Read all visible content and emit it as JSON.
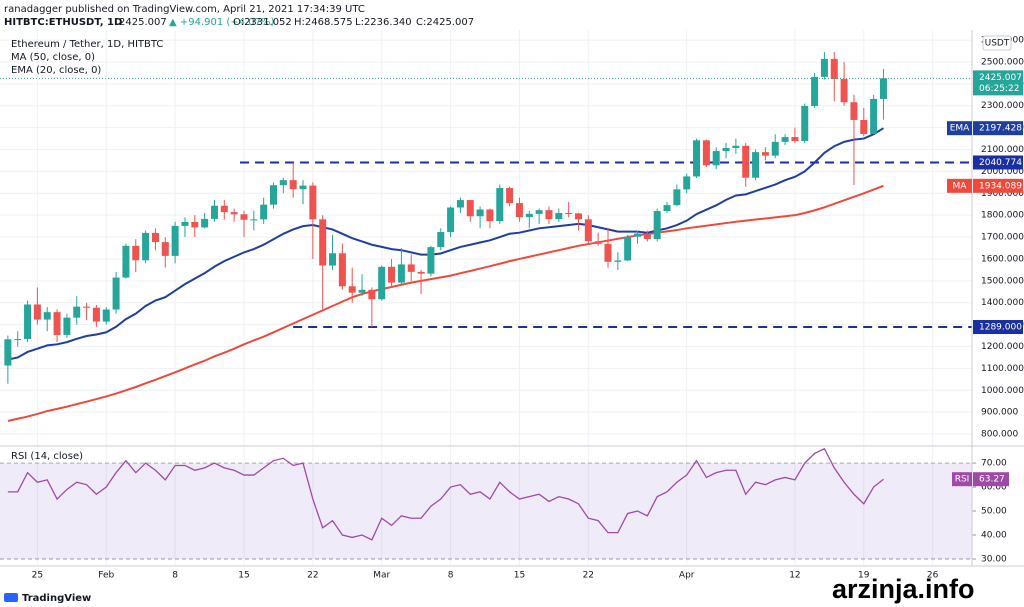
{
  "header": {
    "published": "ranadagger published on TradingView.com, April 21, 2021 17:34:39 UTC",
    "symbol": "HITBTC:ETHUSDT, 1D",
    "last": "2425.007",
    "change": "▲ +94.901 (+4.07%)",
    "stats": [
      "O:2331.052",
      "H:2468.575",
      "L:2236.340",
      "C:2425.007"
    ]
  },
  "footer": {
    "brand": "TradingView",
    "watermark": "arzinja.info"
  },
  "chart_data": [
    {
      "type": "candlestick",
      "title": "Ethereum / Tether, 1D, HITBTC",
      "unit": "USDT",
      "countdown": "06:25:22",
      "up_color": "#26a69a",
      "down_color": "#ef5350",
      "grid": true,
      "x": [
        22,
        23,
        24,
        25,
        26,
        27,
        28,
        29,
        30,
        31,
        32,
        33,
        34,
        35,
        36,
        37,
        38,
        39,
        40,
        41,
        42,
        43,
        44,
        45,
        46,
        47,
        48,
        49,
        50,
        51,
        52,
        53,
        54,
        55,
        56,
        57,
        58,
        59,
        60,
        61,
        62,
        63,
        64,
        65,
        66,
        67,
        68,
        69,
        70,
        71,
        72,
        73,
        74,
        75,
        76,
        77,
        78,
        79,
        80,
        81,
        82,
        83,
        84,
        85,
        86,
        87,
        88,
        89,
        90,
        91,
        92,
        93,
        94,
        95,
        96,
        97,
        98,
        99,
        100,
        101,
        102,
        103,
        104,
        105,
        106,
        107,
        108,
        109,
        110,
        111
      ],
      "open": [
        1113,
        1233,
        1234,
        1392,
        1323,
        1357,
        1253,
        1332,
        1382,
        1377,
        1314,
        1369,
        1515,
        1660,
        1594,
        1719,
        1677,
        1614,
        1751,
        1769,
        1744,
        1783,
        1843,
        1814,
        1804,
        1779,
        1781,
        1848,
        1937,
        1960,
        1919,
        1935,
        1781,
        1570,
        1626,
        1475,
        1446,
        1459,
        1416,
        1564,
        1492,
        1575,
        1541,
        1533,
        1654,
        1723,
        1835,
        1869,
        1795,
        1826,
        1773,
        1924,
        1855,
        1791,
        1806,
        1823,
        1782,
        1810,
        1808,
        1781,
        1681,
        1669,
        1587,
        1593,
        1702,
        1716,
        1691,
        1819,
        1846,
        1918,
        1977,
        2142,
        2028,
        2093,
        2107,
        2117,
        1971,
        2088,
        2072,
        2135,
        2157,
        2139,
        2299,
        2432,
        2514,
        2422,
        2316,
        2235,
        2171,
        2331.052
      ],
      "high": [
        1250,
        1270,
        1410,
        1470,
        1380,
        1370,
        1350,
        1430,
        1400,
        1390,
        1380,
        1540,
        1670,
        1690,
        1730,
        1740,
        1700,
        1770,
        1790,
        1800,
        1810,
        1870,
        1870,
        1830,
        1820,
        1820,
        1880,
        1950,
        1970,
        2040,
        1960,
        1950,
        1800,
        1710,
        1670,
        1560,
        1530,
        1470,
        1570,
        1600,
        1650,
        1620,
        1550,
        1660,
        1740,
        1840,
        1880,
        1870,
        1840,
        1830,
        1940,
        1930,
        1880,
        1820,
        1830,
        1840,
        1830,
        1860,
        1810,
        1800,
        1720,
        1740,
        1630,
        1710,
        1730,
        1730,
        1830,
        1860,
        1940,
        1990,
        2150,
        2145,
        2110,
        2130,
        2150,
        2130,
        2100,
        2110,
        2170,
        2170,
        2200,
        2310,
        2450,
        2545,
        2545,
        2500,
        2350,
        2290,
        2350,
        2468.575
      ],
      "low": [
        1030,
        1200,
        1220,
        1300,
        1270,
        1220,
        1240,
        1300,
        1320,
        1290,
        1300,
        1350,
        1510,
        1540,
        1580,
        1640,
        1560,
        1580,
        1700,
        1700,
        1740,
        1770,
        1780,
        1770,
        1700,
        1730,
        1760,
        1830,
        1900,
        1880,
        1850,
        1600,
        1360,
        1550,
        1460,
        1400,
        1430,
        1289,
        1410,
        1470,
        1480,
        1500,
        1440,
        1520,
        1640,
        1700,
        1810,
        1770,
        1740,
        1740,
        1760,
        1840,
        1770,
        1740,
        1760,
        1760,
        1770,
        1790,
        1730,
        1670,
        1660,
        1560,
        1550,
        1590,
        1670,
        1680,
        1680,
        1810,
        1840,
        1900,
        1970,
        2020,
        2010,
        2060,
        2080,
        1930,
        1960,
        2050,
        2060,
        2120,
        2130,
        2130,
        2290,
        2420,
        2320,
        2300,
        1938,
        2160,
        2170,
        2236.34
      ],
      "close": [
        1233,
        1234,
        1392,
        1323,
        1357,
        1253,
        1332,
        1382,
        1377,
        1314,
        1369,
        1515,
        1660,
        1594,
        1719,
        1677,
        1614,
        1751,
        1769,
        1744,
        1783,
        1843,
        1814,
        1804,
        1779,
        1781,
        1848,
        1937,
        1960,
        1919,
        1935,
        1781,
        1570,
        1626,
        1475,
        1446,
        1459,
        1416,
        1564,
        1492,
        1575,
        1541,
        1533,
        1654,
        1723,
        1835,
        1869,
        1795,
        1826,
        1773,
        1924,
        1855,
        1791,
        1806,
        1823,
        1782,
        1810,
        1808,
        1781,
        1681,
        1669,
        1587,
        1593,
        1702,
        1716,
        1691,
        1819,
        1846,
        1918,
        1977,
        2142,
        2028,
        2093,
        2107,
        2117,
        1971,
        2088,
        2072,
        2135,
        2157,
        2139,
        2299,
        2432,
        2514,
        2422,
        2316,
        2235,
        2171,
        2331,
        2425.007
      ],
      "series": [
        {
          "name": "MA (50, close, 0)",
          "tag": "MA",
          "color": "#f0493a",
          "values": [
            860,
            870,
            880,
            892,
            905,
            915,
            925,
            937,
            948,
            960,
            972,
            985,
            1000,
            1015,
            1032,
            1048,
            1065,
            1082,
            1100,
            1118,
            1135,
            1155,
            1172,
            1190,
            1210,
            1228,
            1245,
            1265,
            1285,
            1305,
            1325,
            1345,
            1365,
            1385,
            1405,
            1425,
            1440,
            1452,
            1462,
            1472,
            1482,
            1492,
            1500,
            1508,
            1516,
            1524,
            1535,
            1545,
            1556,
            1567,
            1578,
            1590,
            1600,
            1610,
            1620,
            1630,
            1640,
            1650,
            1660,
            1668,
            1676,
            1684,
            1692,
            1700,
            1708,
            1714,
            1720,
            1726,
            1732,
            1740,
            1746,
            1752,
            1758,
            1764,
            1770,
            1775,
            1780,
            1785,
            1790,
            1795,
            1800,
            1810,
            1822,
            1836,
            1852,
            1868,
            1884,
            1900,
            1917,
            1934.089
          ]
        },
        {
          "name": "EMA (20, close, 0)",
          "tag": "EMA",
          "color": "#1f3fa0",
          "values": [
            1140,
            1150,
            1175,
            1190,
            1205,
            1210,
            1220,
            1235,
            1248,
            1255,
            1265,
            1290,
            1325,
            1350,
            1385,
            1410,
            1425,
            1455,
            1485,
            1510,
            1535,
            1565,
            1590,
            1610,
            1630,
            1645,
            1665,
            1690,
            1715,
            1735,
            1750,
            1755,
            1745,
            1735,
            1715,
            1695,
            1680,
            1665,
            1655,
            1645,
            1640,
            1630,
            1620,
            1620,
            1625,
            1640,
            1655,
            1665,
            1675,
            1685,
            1700,
            1715,
            1720,
            1730,
            1740,
            1745,
            1750,
            1755,
            1760,
            1755,
            1745,
            1735,
            1725,
            1725,
            1725,
            1720,
            1730,
            1740,
            1755,
            1775,
            1805,
            1825,
            1845,
            1870,
            1890,
            1895,
            1910,
            1925,
            1940,
            1960,
            1975,
            2000,
            2040,
            2085,
            2115,
            2135,
            2145,
            2150,
            2170,
            2197.428
          ]
        }
      ],
      "levels": [
        {
          "value": 2040.774,
          "from": 45.6,
          "color": "#1a2fa0"
        },
        {
          "value": {
            "value": 1289,
            "label": "1289.000"
          },
          "from": 51,
          "color": "#1a2fa0"
        }
      ],
      "xlim": [
        21.2,
        120
      ],
      "xticks": [
        25,
        {
          "value": 32,
          "label": "Feb"
        },
        {
          "value": 39,
          "label": "8"
        },
        {
          "value": 46,
          "label": "15"
        },
        {
          "value": 53,
          "label": "22"
        },
        {
          "value": 60,
          "label": "Mar"
        },
        {
          "value": 67,
          "label": "8"
        },
        {
          "value": 74,
          "label": "15"
        },
        {
          "value": 81,
          "label": "22"
        },
        {
          "value": 91,
          "label": "Apr"
        },
        {
          "value": 102,
          "label": "12"
        },
        {
          "value": 109,
          "label": "19"
        },
        {
          "value": 116,
          "label": "26"
        }
      ],
      "ylim": [
        750,
        2646
      ],
      "yticks": [
        {
          "value": 800,
          "label": "800.000"
        },
        {
          "value": 900,
          "label": "900.000"
        },
        {
          "value": 1000,
          "label": "1000.000"
        },
        {
          "value": 1100,
          "label": "1100.000"
        },
        {
          "value": 1200,
          "label": "1200.000"
        },
        {
          "value": 1300,
          "label": "1300.000"
        },
        {
          "value": 1400,
          "label": "1400.000"
        },
        {
          "value": 1500,
          "label": "1500.000"
        },
        {
          "value": 1600,
          "label": "1600.000"
        },
        {
          "value": 1700,
          "label": "1700.000"
        },
        {
          "value": 1800,
          "label": "1800.000"
        },
        {
          "value": 1900,
          "label": "1900.000"
        },
        {
          "value": 2000,
          "label": "2000.000"
        },
        {
          "value": 2100,
          "label": "2100.000"
        },
        {
          "value": 2200,
          "label": "2200.000"
        },
        {
          "value": 2300,
          "label": "2300.000"
        },
        {
          "value": 2400,
          "label": "2400.000"
        },
        {
          "value": 2500,
          "label": "2500.000"
        },
        {
          "value": 2600,
          "label": "2600.000"
        }
      ]
    },
    {
      "type": "line",
      "title": "RSI (14, close)",
      "band": [
        30,
        70
      ],
      "band_color": "#7e57c2",
      "series": [
        {
          "name": "RSI",
          "color": "#a04aa8",
          "values": [
            58,
            58,
            66,
            62,
            63,
            55,
            59,
            62,
            61,
            57,
            60,
            66,
            71,
            66,
            70,
            67,
            63,
            69,
            69,
            67,
            68,
            70,
            68,
            67,
            65,
            65,
            68,
            71,
            72,
            69,
            70,
            55,
            43,
            46,
            40,
            39,
            40,
            38,
            47,
            44,
            48,
            47,
            47,
            52,
            55,
            60,
            61,
            57,
            58,
            55,
            62,
            58,
            55,
            56,
            57,
            54,
            56,
            55,
            53,
            47,
            46,
            41,
            41,
            49,
            50,
            48,
            56,
            58,
            62,
            65,
            71,
            64,
            66,
            67,
            67,
            57,
            62,
            61,
            63,
            64,
            63,
            70,
            74,
            76,
            68,
            62,
            57,
            53,
            60,
            63.27
          ]
        }
      ],
      "ylim": [
        27.5,
        76.7
      ],
      "yticks": [
        {
          "value": 30,
          "label": "30.00"
        },
        {
          "value": 40,
          "label": "40.00"
        },
        {
          "value": 50,
          "label": "50.00"
        },
        {
          "value": 60,
          "label": "60.00"
        },
        {
          "value": 70,
          "label": "70.00"
        }
      ]
    }
  ]
}
